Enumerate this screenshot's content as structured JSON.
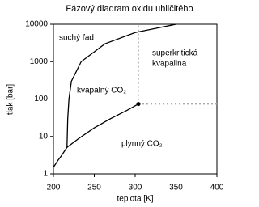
{
  "chart_data": {
    "type": "line",
    "title": "Fázový diadram oxidu uhličitého",
    "x_label": "teplota [K]",
    "y_label": "tlak [bar]",
    "xlim": [
      200,
      400
    ],
    "xticks": [
      200,
      250,
      300,
      350,
      400
    ],
    "ylim": [
      1,
      10000
    ],
    "yticks": [
      1,
      10,
      100,
      1000,
      10000
    ],
    "ylog": true,
    "series": [
      {
        "x": [
          200,
          205,
          210,
          216.6
        ],
        "values": [
          1.5,
          2.2,
          3.1,
          5.1
        ],
        "color": "#000000"
      },
      {
        "x": [
          216.6,
          217.5,
          219,
          222,
          234,
          263,
          300,
          350
        ],
        "values": [
          5.1,
          30,
          100,
          300,
          1000,
          3000,
          6000,
          10000
        ],
        "color": "#000000"
      },
      {
        "x": [
          216.6,
          230,
          250,
          270,
          290,
          304
        ],
        "values": [
          5.1,
          8.5,
          17,
          30,
          50,
          73.8
        ],
        "color": "#000000"
      }
    ],
    "critical_point": {
      "x": 304,
      "y": 73.8
    },
    "annotations": [
      "suchý ľad",
      "kvapalný CO₂",
      "plynný CO₂",
      "superkritická",
      "kvapalina"
    ]
  }
}
